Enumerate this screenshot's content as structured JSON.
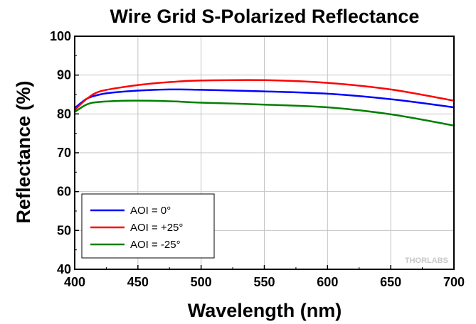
{
  "chart_data": {
    "type": "line",
    "title": "Wire Grid S-Polarized Reflectance",
    "xlabel": "Wavelength (nm)",
    "ylabel": "Reflectance (%)",
    "xlim": [
      400,
      700
    ],
    "ylim": [
      40,
      100
    ],
    "xticks": [
      400,
      450,
      500,
      550,
      600,
      650,
      700
    ],
    "yticks": [
      40,
      50,
      60,
      70,
      80,
      90,
      100
    ],
    "grid": true,
    "legend_position": "bottom-left",
    "watermark": "THORLABS",
    "series": [
      {
        "name": "AOI = 0°",
        "color": "#0000ff",
        "x": [
          400,
          410,
          420,
          430,
          450,
          475,
          500,
          550,
          600,
          650,
          700
        ],
        "y": [
          81.5,
          84.0,
          85.0,
          85.5,
          86.0,
          86.3,
          86.2,
          85.8,
          85.2,
          83.8,
          81.7
        ]
      },
      {
        "name": "AOI = +25°",
        "color": "#ff0000",
        "x": [
          400,
          410,
          420,
          440,
          460,
          480,
          500,
          550,
          600,
          650,
          700
        ],
        "y": [
          81.0,
          84.0,
          85.8,
          87.0,
          87.8,
          88.3,
          88.6,
          88.7,
          88.0,
          86.3,
          83.4
        ]
      },
      {
        "name": "AOI = -25°",
        "color": "#008000",
        "x": [
          400,
          410,
          420,
          440,
          460,
          480,
          500,
          550,
          600,
          650,
          700
        ],
        "y": [
          80.5,
          82.5,
          83.1,
          83.4,
          83.4,
          83.2,
          82.9,
          82.4,
          81.7,
          79.9,
          77.0
        ]
      }
    ]
  }
}
